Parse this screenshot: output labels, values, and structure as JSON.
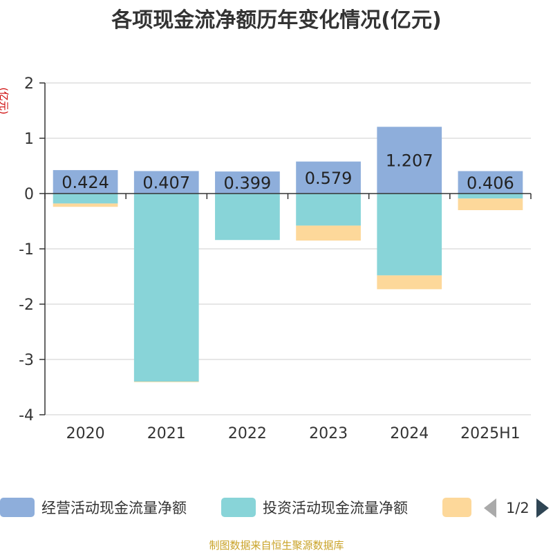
{
  "chart_data": {
    "type": "bar",
    "stacked": true,
    "title": "各项现金流净额历年变化情况(亿元)",
    "ylabel": "(亿元)",
    "categories": [
      "2020",
      "2021",
      "2022",
      "2023",
      "2024",
      "2025H1"
    ],
    "ylim": [
      -4,
      2
    ],
    "yticks": [
      2,
      1,
      0,
      -1,
      -2,
      -3,
      -4
    ],
    "grid": true,
    "legend_position": "bottom",
    "series": [
      {
        "name": "经营活动现金流量净额",
        "color": "#8eaedb",
        "values": [
          0.424,
          0.407,
          0.399,
          0.579,
          1.207,
          0.406
        ],
        "labels": [
          "0.424",
          "0.407",
          "0.399",
          "0.579",
          "1.207",
          "0.406"
        ]
      },
      {
        "name": "投资活动现金流量净额",
        "color": "#88d4d8",
        "values": [
          -0.18,
          -3.4,
          -0.84,
          -0.58,
          -1.48,
          -0.09
        ]
      },
      {
        "name": "",
        "color": "#fdd89a",
        "values": [
          -0.06,
          -0.01,
          0.0,
          -0.27,
          -0.25,
          -0.21
        ]
      }
    ]
  },
  "legend": {
    "page": "1/2"
  },
  "source": "制图数据来自恒生聚源数据库"
}
